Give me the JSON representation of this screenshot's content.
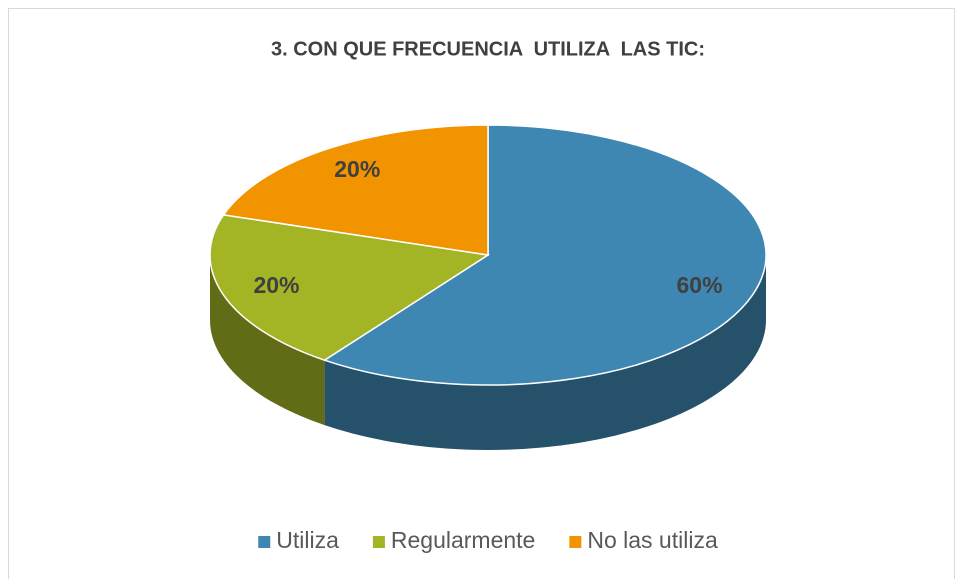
{
  "chart_data": {
    "type": "pie",
    "title": "3. CON QUE FRECUENCIA  UTILIZA  LAS TIC:",
    "categories": [
      "Utiliza",
      "Regularmente",
      "No las utiliza"
    ],
    "values": [
      60,
      20,
      20
    ],
    "value_labels": [
      "60%",
      "20%",
      "20%"
    ],
    "colors": [
      "#3f87b3",
      "#a3b425",
      "#f29300"
    ],
    "legend": "bottom"
  }
}
